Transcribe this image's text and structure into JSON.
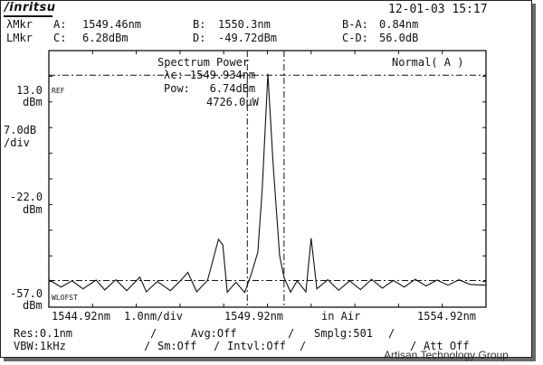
{
  "header": {
    "brand": "/inritsu",
    "timestamp": "12-01-03 15:17"
  },
  "markers": {
    "row1_label": "λMkr",
    "row2_label": "LMkr",
    "a_label": "A:",
    "a_value": "1549.46nm",
    "b_label": "B:",
    "b_value": "1550.3nm",
    "ba_label": "B-A:",
    "ba_value": "0.84nm",
    "c_label": "C:",
    "c_value": "6.28dBm",
    "d_label": "D:",
    "d_value": "-49.72dBm",
    "cd_label": "C-D:",
    "cd_value": "56.0dB"
  },
  "plot": {
    "analysis_title": "Spectrum Power",
    "lambda_c": "λc: 1549.934nm",
    "pow": "Pow:   6.74dBm",
    "pow_uw": "4726.0μW",
    "mode": "Normal( A )",
    "ref_tag": "REF",
    "wl_tag": "WLOFST"
  },
  "y_axis": {
    "top_value": "13.0",
    "top_unit": "dBm",
    "scale_value": "7.0dB",
    "scale_unit": "/div",
    "mid_value": "-22.0",
    "mid_unit": "dBm",
    "bottom_value": "-57.0",
    "bottom_unit": "dBm"
  },
  "x_axis": {
    "start": "1544.92nm",
    "span_div": "1.0nm/div",
    "center": "1549.92nm",
    "medium": "in Air",
    "stop": "1554.92nm"
  },
  "settings": {
    "res": "Res:0.1nm",
    "avg": "Avg:Off",
    "smplg": "Smplg:501",
    "vbw": "VBW:1kHz",
    "sm": "Sm:Off",
    "intvl": "Intvl:Off",
    "att": "Att Off"
  },
  "watermark": "Artisan Technology Group",
  "chart_data": {
    "type": "line",
    "x_unit": "nm",
    "y_unit": "dBm",
    "xlim": [
      1544.92,
      1554.92
    ],
    "ylim": [
      -57.0,
      13.0
    ],
    "x_ticks": [
      "1544.92nm",
      "1549.92nm",
      "1554.92nm"
    ],
    "y_ticks": [
      "13.0",
      "-22.0",
      "-57.0"
    ],
    "grid": true,
    "series": [
      {
        "x": [
          1544.92,
          1545.2,
          1545.45,
          1545.7,
          1546.0,
          1546.2,
          1546.45,
          1546.7,
          1547.0,
          1547.15,
          1547.4,
          1547.7,
          1547.92,
          1548.1,
          1548.3,
          1548.55,
          1548.8,
          1548.9,
          1549.0,
          1549.2,
          1549.4,
          1549.55,
          1549.7,
          1549.8,
          1549.93,
          1550.05,
          1550.2,
          1550.3,
          1550.45,
          1550.6,
          1550.8,
          1550.92,
          1551.05,
          1551.3,
          1551.55,
          1551.8,
          1552.05,
          1552.3,
          1552.55,
          1552.8,
          1553.05,
          1553.3,
          1553.55,
          1553.8,
          1554.05,
          1554.3,
          1554.55,
          1554.92
        ],
        "y": [
          -49.5,
          -51.5,
          -49.8,
          -52.0,
          -49.6,
          -52.3,
          -49.5,
          -52.5,
          -48.8,
          -52.8,
          -50.0,
          -52.5,
          -49.9,
          -47.5,
          -52.8,
          -49.7,
          -38.5,
          -40.0,
          -52.9,
          -50.2,
          -53.0,
          -48.0,
          -42.0,
          -25.0,
          6.7,
          -18.0,
          -43.0,
          -49.0,
          -52.9,
          -49.8,
          -52.8,
          -38.2,
          -52.0,
          -49.5,
          -52.4,
          -49.8,
          -52.2,
          -49.4,
          -51.8,
          -49.7,
          -51.5,
          -49.4,
          -51.2,
          -49.6,
          -51.0,
          -49.5,
          -50.8,
          -51.0
        ]
      }
    ],
    "marker_lines": {
      "vertical_nm": [
        1549.46,
        1550.3
      ],
      "horizontal_dbm": [
        6.28,
        -49.72
      ]
    }
  }
}
